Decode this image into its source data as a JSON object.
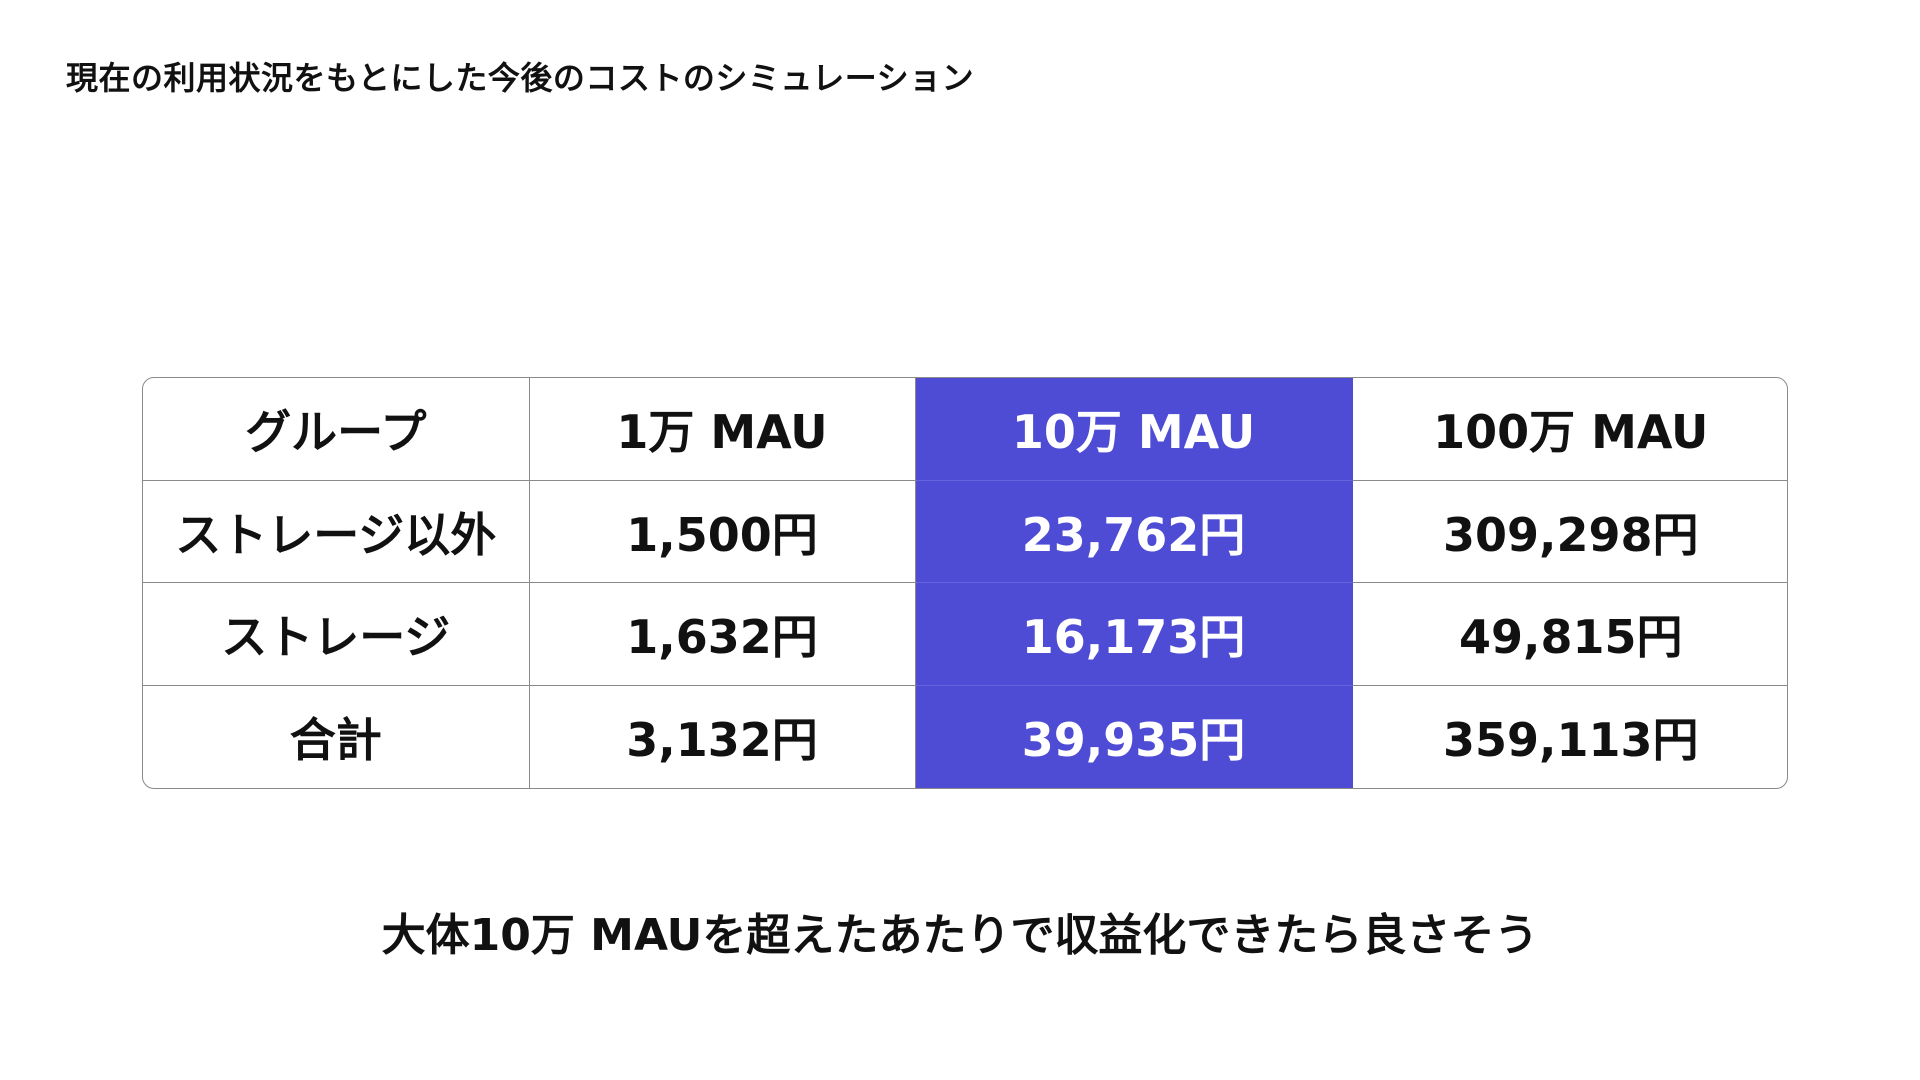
{
  "slide": {
    "title": "現在の利用状況をもとにした今後のコストのシミュレーション",
    "conclusion": "大体10万 MAUを超えたあたりで収益化できたら良さそう"
  },
  "table": {
    "highlight_color": "#4e4bd4",
    "headers": [
      "グループ",
      "1万 MAU",
      "10万 MAU",
      "100万 MAU"
    ],
    "rows": [
      {
        "group": "ストレージ以外",
        "values": [
          "1,500円",
          "23,762円",
          "309,298円"
        ]
      },
      {
        "group": "ストレージ",
        "values": [
          "1,632円",
          "16,173円",
          "49,815円"
        ]
      },
      {
        "group": "合計",
        "values": [
          "3,132円",
          "39,935円",
          "359,113円"
        ]
      }
    ]
  }
}
